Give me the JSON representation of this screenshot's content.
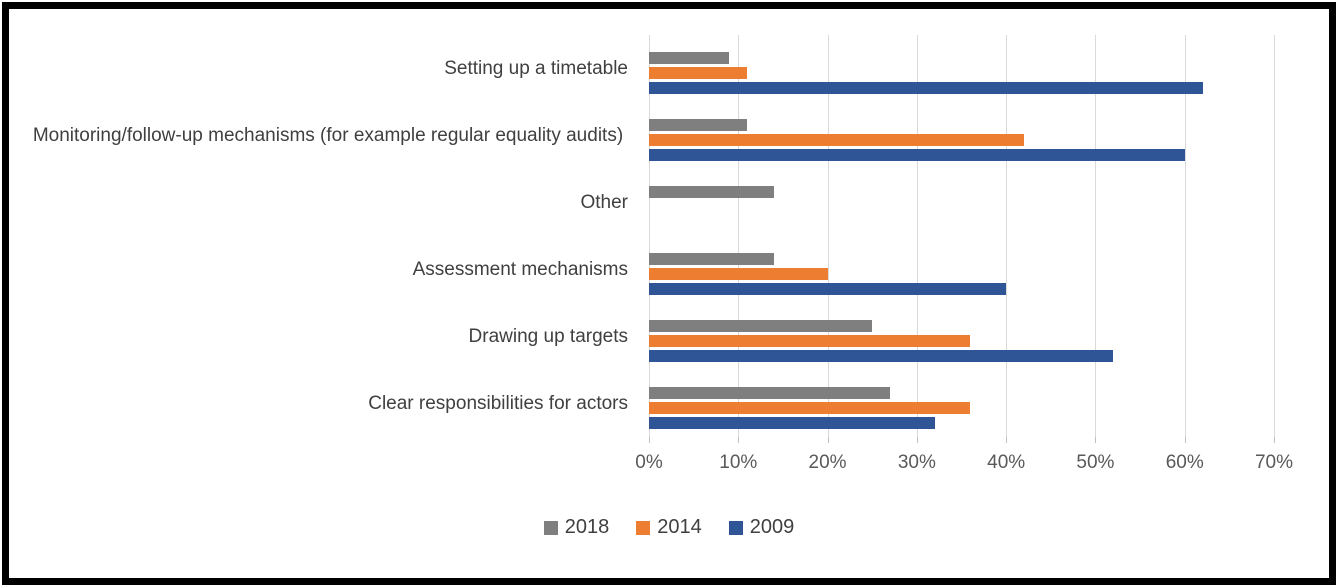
{
  "figure": {
    "background": "#ffffff",
    "border_color": "#000000"
  },
  "chart_data": {
    "type": "bar",
    "orientation": "horizontal",
    "title": "",
    "xlabel": "",
    "ylabel": "",
    "categories": [
      "Setting up a timetable",
      "Monitoring/follow-up mechanisms (for example regular equality audits)",
      "Other",
      "Assessment mechanisms",
      "Drawing up targets",
      "Clear responsibilities for actors"
    ],
    "series": [
      {
        "name": "2018",
        "color": "#7F7F7F",
        "values": [
          9,
          11,
          14,
          14,
          25,
          27
        ]
      },
      {
        "name": "2014",
        "color": "#ED7D31",
        "values": [
          11,
          42,
          0,
          20,
          36,
          36
        ]
      },
      {
        "name": "2009",
        "color": "#2F5597",
        "values": [
          62,
          60,
          0,
          40,
          52,
          32
        ]
      }
    ],
    "axis": {
      "min": 0,
      "max": 70,
      "step": 10,
      "tick_labels": [
        "0%",
        "10%",
        "20%",
        "30%",
        "40%",
        "50%",
        "60%",
        "70%"
      ],
      "gridlines": true,
      "gridline_color": "#D9D9D9",
      "tick_color": "#BFBFBF",
      "label_color": "#595959"
    },
    "legend": {
      "position": "bottom",
      "entries": [
        "2018",
        "2014",
        "2009"
      ]
    }
  }
}
